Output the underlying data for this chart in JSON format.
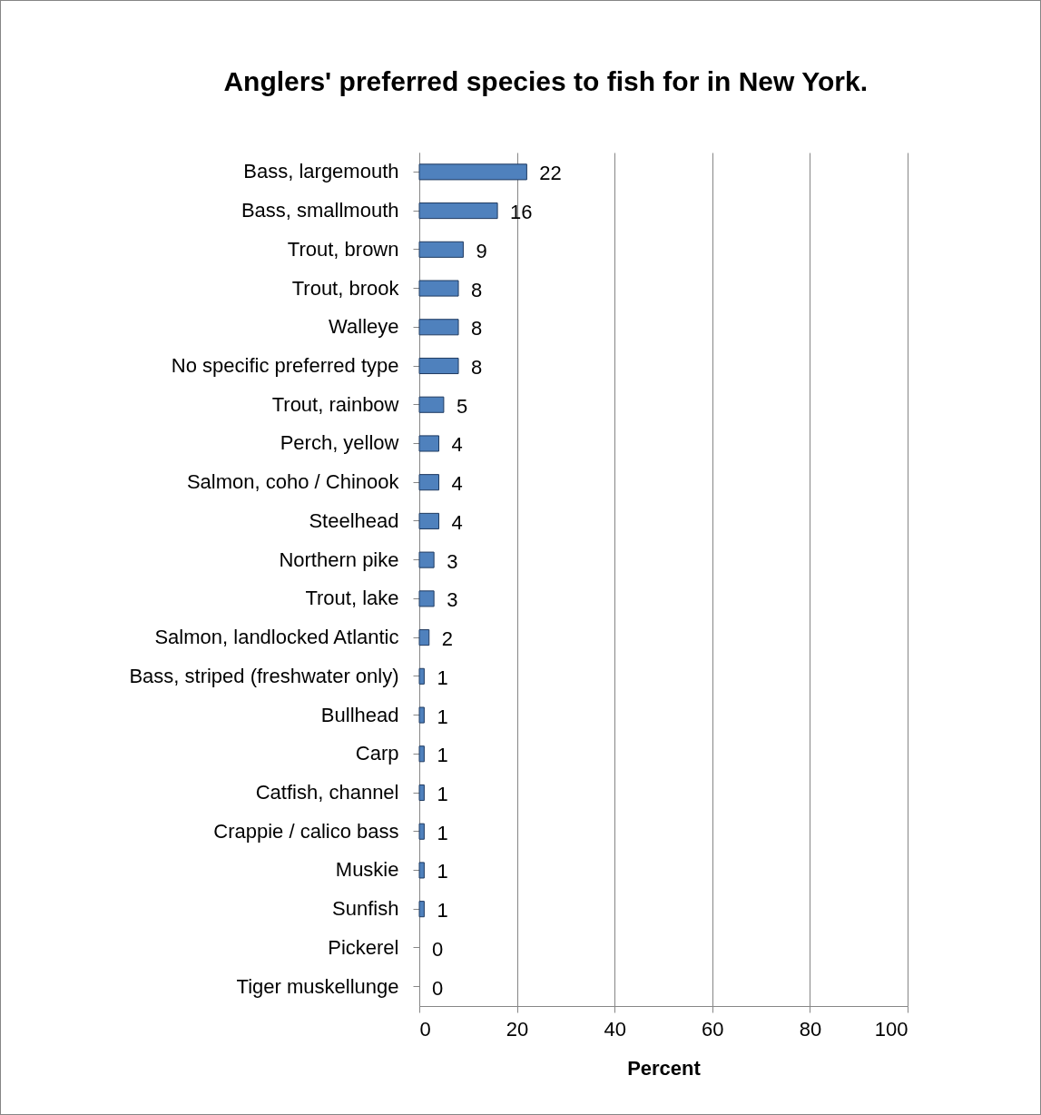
{
  "chart_data": {
    "type": "bar",
    "orientation": "horizontal",
    "title": "Anglers' preferred species to fish for in New York.",
    "xlabel": "Percent",
    "categories": [
      "Bass, largemouth",
      "Bass, smallmouth",
      "Trout, brown",
      "Trout, brook",
      "Walleye",
      "No specific preferred type",
      "Trout, rainbow",
      "Perch, yellow",
      "Salmon, coho / Chinook",
      "Steelhead",
      "Northern pike",
      "Trout, lake",
      "Salmon, landlocked Atlantic",
      "Bass, striped (freshwater only)",
      "Bullhead",
      "Carp",
      "Catfish, channel",
      "Crappie / calico bass",
      "Muskie",
      "Sunfish",
      "Pickerel",
      "Tiger muskellunge"
    ],
    "values": [
      22,
      16,
      9,
      8,
      8,
      8,
      5,
      4,
      4,
      4,
      3,
      3,
      2,
      1,
      1,
      1,
      1,
      1,
      1,
      1,
      0,
      0
    ],
    "color": "#4f81bd",
    "xlim": [
      0,
      100
    ],
    "xticks": [
      0,
      20,
      40,
      60,
      80,
      100
    ],
    "grid": "x",
    "data_labels": true
  }
}
